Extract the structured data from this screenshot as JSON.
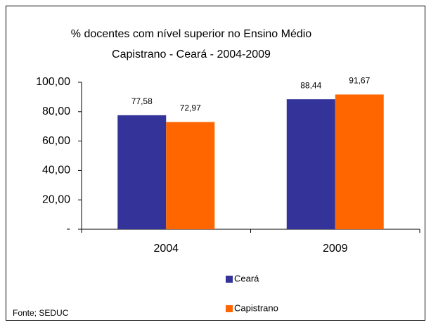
{
  "chart_data": {
    "type": "bar",
    "title": "% docentes com nível  superior no Ensino Médio",
    "subtitle": "Capistrano  -  Ceará - 2004-2009",
    "categories": [
      "2004",
      "2009"
    ],
    "series": [
      {
        "name": "Ceará",
        "color": "#333399",
        "values": [
          77.58,
          88.44
        ],
        "value_labels": [
          "77,58",
          "88,44"
        ]
      },
      {
        "name": "Capistrano",
        "color": "#ff6600",
        "values": [
          72.97,
          91.67
        ],
        "value_labels": [
          "72,97",
          "91,67"
        ]
      }
    ],
    "ylim": [
      0,
      100
    ],
    "yticks": [
      {
        "value": 0,
        "label": "-"
      },
      {
        "value": 20,
        "label": "20,00"
      },
      {
        "value": 40,
        "label": "40,00"
      },
      {
        "value": 60,
        "label": "60,00"
      },
      {
        "value": 80,
        "label": "80,00"
      },
      {
        "value": 100,
        "label": "100,00"
      }
    ],
    "grid": false,
    "legend": "bottom",
    "source": "Fonte; SEDUC"
  }
}
